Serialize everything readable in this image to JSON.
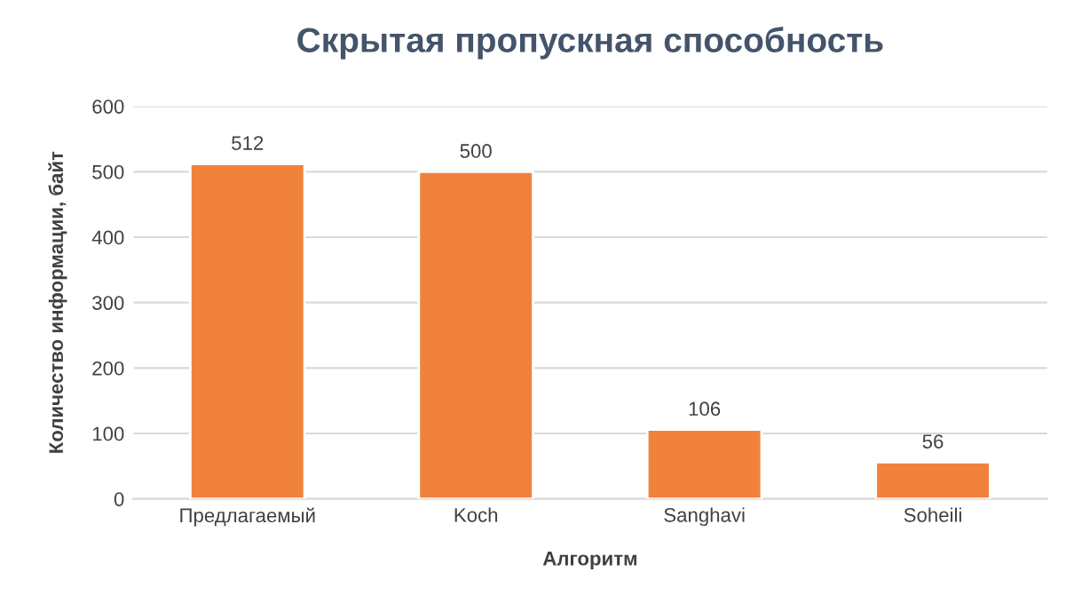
{
  "chart_data": {
    "type": "bar",
    "title": "Скрытая пропускная способность",
    "xlabel": "Алгоритм",
    "ylabel": "Количество информации, байт",
    "categories": [
      "Предлагаемый",
      "Koch",
      "Sanghavi",
      "Soheili"
    ],
    "values": [
      512,
      500,
      106,
      56
    ],
    "color": "#f0823c",
    "ylim": [
      0,
      600
    ],
    "yticks": [
      0,
      100,
      200,
      300,
      400,
      500,
      600
    ],
    "grid": "y",
    "data_labels": true,
    "legend": false
  }
}
